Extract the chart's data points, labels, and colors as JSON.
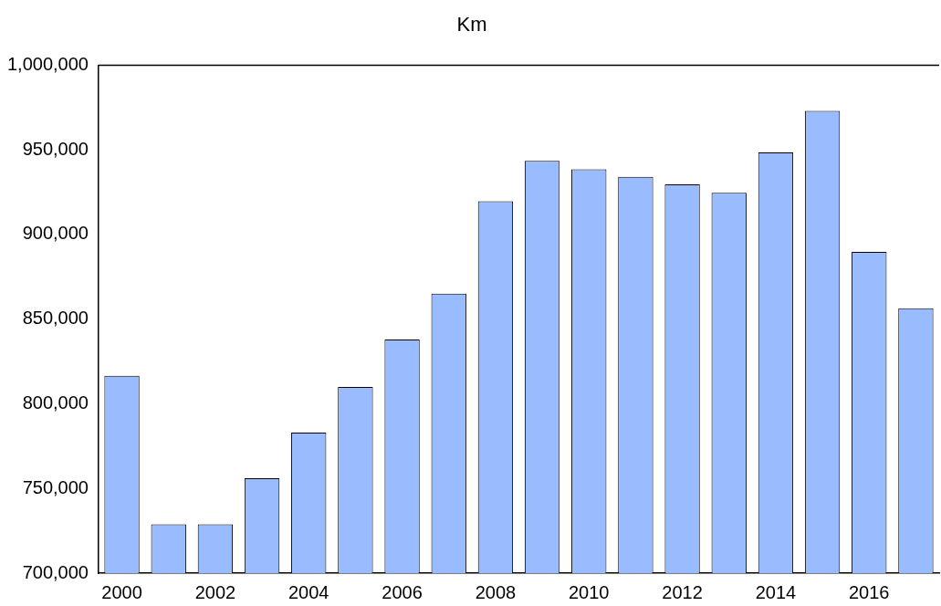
{
  "chart_data": {
    "type": "bar",
    "title": "Km",
    "categories": [
      "2000",
      null,
      "2002",
      null,
      "2004",
      null,
      "2006",
      null,
      "2008",
      null,
      "2010",
      null,
      "2012",
      null,
      "2014",
      null,
      "2016",
      null
    ],
    "values": [
      816500,
      728800,
      728800,
      756000,
      783000,
      810000,
      838000,
      865000,
      919600,
      943500,
      938500,
      934000,
      929600,
      924600,
      948500,
      973000,
      889700,
      856400
    ],
    "color": "#99bbff",
    "ylim": [
      700000,
      1000000
    ],
    "yticks": [
      {
        "value": 700000,
        "label": "700,000"
      },
      {
        "value": 750000,
        "label": "750,000"
      },
      {
        "value": 800000,
        "label": "800,000"
      },
      {
        "value": 850000,
        "label": "850,000"
      },
      {
        "value": 900000,
        "label": "900,000"
      },
      {
        "value": 950000,
        "label": "950,000"
      },
      {
        "value": 1000000,
        "label": "1,000,000"
      }
    ]
  }
}
